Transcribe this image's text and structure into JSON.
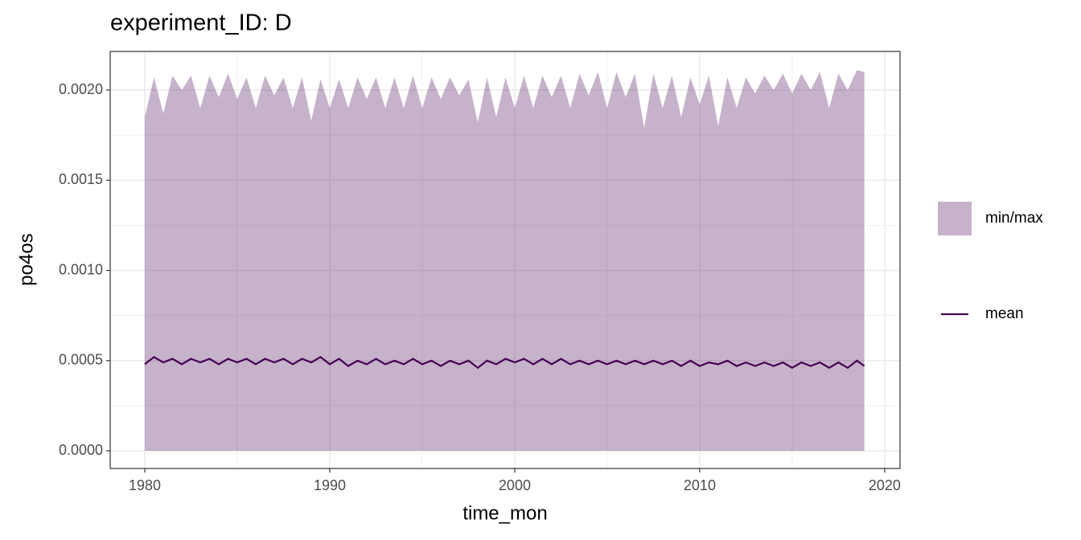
{
  "chart_data": {
    "type": "line",
    "title": "experiment_ID: D",
    "x_label": "time_mon",
    "y_label": "po4os",
    "x": [
      1980.0,
      1980.5,
      1981.0,
      1981.5,
      1982.0,
      1982.5,
      1983.0,
      1983.5,
      1984.0,
      1984.5,
      1985.0,
      1985.5,
      1986.0,
      1986.5,
      1987.0,
      1987.5,
      1988.0,
      1988.5,
      1989.0,
      1989.5,
      1990.0,
      1990.5,
      1991.0,
      1991.5,
      1992.0,
      1992.5,
      1993.0,
      1993.5,
      1994.0,
      1994.5,
      1995.0,
      1995.5,
      1996.0,
      1996.5,
      1997.0,
      1997.5,
      1998.0,
      1998.5,
      1999.0,
      1999.5,
      2000.0,
      2000.5,
      2001.0,
      2001.5,
      2002.0,
      2002.5,
      2003.0,
      2003.5,
      2004.0,
      2004.5,
      2005.0,
      2005.5,
      2006.0,
      2006.5,
      2007.0,
      2007.5,
      2008.0,
      2008.5,
      2009.0,
      2009.5,
      2010.0,
      2010.5,
      2011.0,
      2011.5,
      2012.0,
      2012.5,
      2013.0,
      2013.5,
      2014.0,
      2014.5,
      2015.0,
      2015.5,
      2016.0,
      2016.5,
      2017.0,
      2017.5,
      2018.0,
      2018.5,
      2018.9
    ],
    "series": [
      {
        "name": "min/max",
        "kind": "ribbon",
        "color": "#440154",
        "alpha": 0.3,
        "min": [
          0,
          0,
          0,
          0,
          0,
          0,
          0,
          0,
          0,
          0,
          0,
          0,
          0,
          0,
          0,
          0,
          0,
          0,
          0,
          0,
          0,
          0,
          0,
          0,
          0,
          0,
          0,
          0,
          0,
          0,
          0,
          0,
          0,
          0,
          0,
          0,
          0,
          0,
          0,
          0,
          0,
          0,
          0,
          0,
          0,
          0,
          0,
          0,
          0,
          0,
          0,
          0,
          0,
          0,
          0,
          0,
          0,
          0,
          0,
          0,
          0,
          0,
          0,
          0,
          0,
          0,
          0,
          0,
          0,
          0,
          0,
          0,
          0,
          0,
          0,
          0,
          0,
          0,
          0
        ],
        "max": [
          0.00185,
          0.00207,
          0.00187,
          0.00208,
          0.002,
          0.00208,
          0.0019,
          0.00208,
          0.00196,
          0.00209,
          0.00195,
          0.00207,
          0.0019,
          0.00208,
          0.00197,
          0.00207,
          0.0019,
          0.00207,
          0.00183,
          0.00206,
          0.0019,
          0.00206,
          0.0019,
          0.00207,
          0.00195,
          0.00207,
          0.0019,
          0.00207,
          0.0019,
          0.00208,
          0.0019,
          0.00207,
          0.00195,
          0.00207,
          0.00197,
          0.00206,
          0.00182,
          0.00207,
          0.00185,
          0.00207,
          0.0019,
          0.00208,
          0.0019,
          0.00208,
          0.00196,
          0.00208,
          0.0019,
          0.00209,
          0.00197,
          0.0021,
          0.0019,
          0.0021,
          0.00196,
          0.00209,
          0.00179,
          0.00209,
          0.0019,
          0.00208,
          0.00185,
          0.00207,
          0.00192,
          0.00208,
          0.0018,
          0.00207,
          0.0019,
          0.00207,
          0.00198,
          0.00208,
          0.002,
          0.00209,
          0.00198,
          0.00209,
          0.002,
          0.0021,
          0.0019,
          0.00209,
          0.002,
          0.00211,
          0.0021
        ]
      },
      {
        "name": "mean",
        "kind": "line",
        "color": "#440154",
        "values": [
          0.00048,
          0.00052,
          0.00049,
          0.00051,
          0.00048,
          0.00051,
          0.00049,
          0.00051,
          0.00048,
          0.00051,
          0.00049,
          0.00051,
          0.00048,
          0.00051,
          0.00049,
          0.00051,
          0.00048,
          0.00051,
          0.00049,
          0.00052,
          0.00048,
          0.00051,
          0.00047,
          0.0005,
          0.00048,
          0.00051,
          0.00048,
          0.0005,
          0.00048,
          0.00051,
          0.00048,
          0.0005,
          0.00047,
          0.0005,
          0.00048,
          0.0005,
          0.00046,
          0.0005,
          0.00048,
          0.00051,
          0.00049,
          0.00051,
          0.00048,
          0.00051,
          0.00048,
          0.00051,
          0.00048,
          0.0005,
          0.00048,
          0.0005,
          0.00048,
          0.0005,
          0.00048,
          0.0005,
          0.00048,
          0.0005,
          0.00048,
          0.0005,
          0.00047,
          0.0005,
          0.00047,
          0.00049,
          0.00048,
          0.0005,
          0.00047,
          0.00049,
          0.00047,
          0.00049,
          0.00047,
          0.00049,
          0.00046,
          0.00049,
          0.00047,
          0.00049,
          0.00046,
          0.00049,
          0.00046,
          0.0005,
          0.00047
        ]
      }
    ],
    "xlim": [
      1978.13,
      2020.83
    ],
    "ylim": [
      -9.8e-05,
      0.002214
    ],
    "xticks": [
      1980,
      1990,
      2000,
      2010,
      2020
    ],
    "yticks": [
      {
        "value": 0,
        "label": "0.0000"
      },
      {
        "value": 0.0005,
        "label": "0.0005"
      },
      {
        "value": 0.001,
        "label": "0.0010"
      },
      {
        "value": 0.0015,
        "label": "0.0015"
      },
      {
        "value": 0.002,
        "label": "0.0020"
      }
    ],
    "grid": true
  }
}
